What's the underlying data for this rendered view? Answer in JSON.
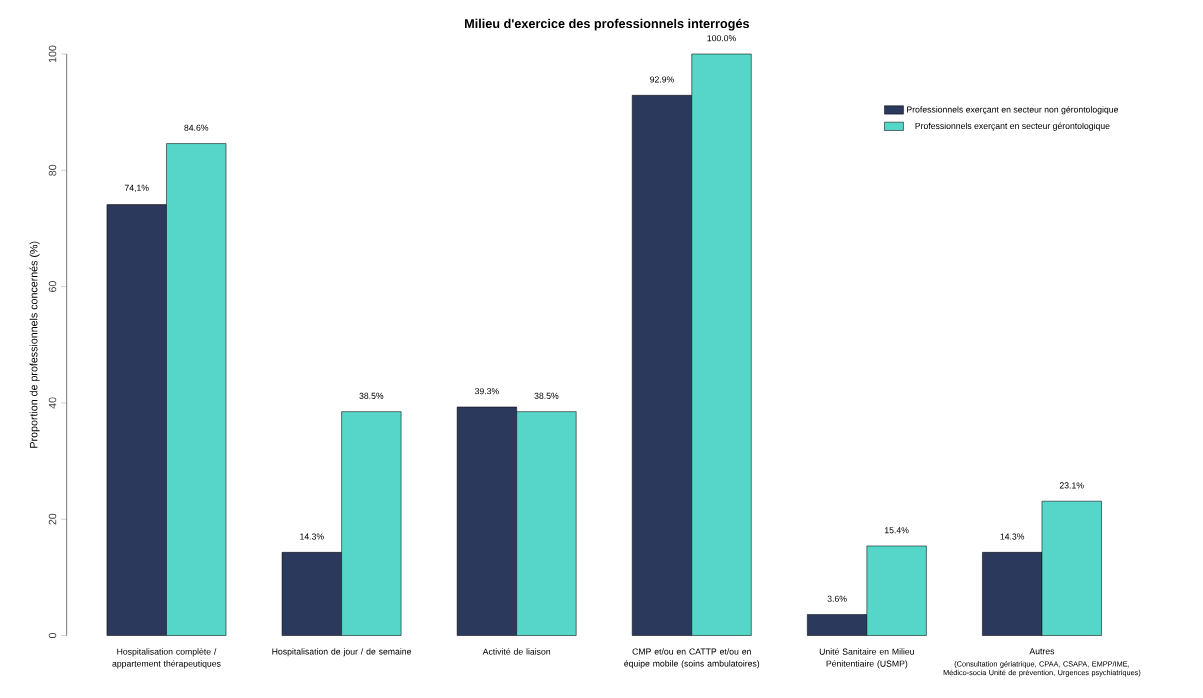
{
  "chart_data": {
    "type": "bar",
    "title": "Milieu d'exercice des professionnels interrogés",
    "ylabel": "Proportion de professionnels concernés (%)",
    "categories": [
      "Hospitalisation complète / appartement thérapeutiques",
      "Hospitalisation de jour / de semaine",
      "Activité de liaison",
      "CMP et/ou en CATTP et/ou en équipe mobile (soins ambulatoires)",
      "Unité Sanitaire en Milieu Pénitentiaire (USMP)",
      "Autres"
    ],
    "series": [
      {
        "name": "Professionnels exerçant en secteur non gérontologique",
        "color": "#2b3a5c",
        "values": [
          74.1,
          14.3,
          39.3,
          92.9,
          3.6,
          14.3
        ],
        "value_labels": [
          "74,1%",
          "14.3%",
          "39.3%",
          "92.9%",
          "3.6%",
          "14.3%"
        ]
      },
      {
        "name": "Professionnels exerçant en secteur gérontologique",
        "color": "#55d6c8",
        "values": [
          84.6,
          38.5,
          38.5,
          100,
          15.4,
          23.1
        ],
        "value_labels": [
          "84.6%",
          "38.5%",
          "38.5%",
          "100.0%",
          "15.4%",
          "23.1%"
        ]
      }
    ],
    "annotations": [
      "(Consultation gériatrique, CPAA, CSAPA, EMPP/IME, Médico-socia Unité de prévention, Urgences psychiatriques)"
    ],
    "ylim": [
      0,
      100
    ],
    "yticks": [
      0,
      20,
      40,
      60,
      80,
      100
    ],
    "grid": false,
    "legend": "top right"
  }
}
